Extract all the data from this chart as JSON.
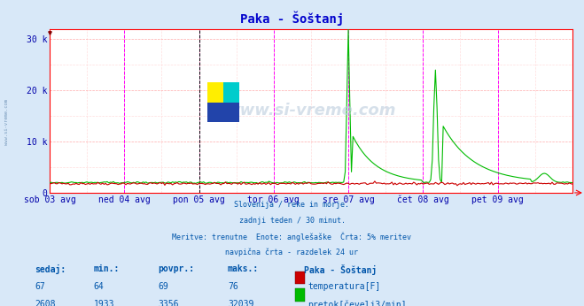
{
  "title": "Paka - Šoštanj",
  "bg_color": "#d8e8f8",
  "plot_bg_color": "#ffffff",
  "grid_color_major": "#ffaaaa",
  "grid_color_minor": "#ffdddd",
  "vline_color_magenta": "#ff00ff",
  "vline_color_black": "#000000",
  "xlabel_color": "#0000aa",
  "ylabel_color": "#0000aa",
  "title_color": "#0000cc",
  "text_color": "#0055aa",
  "x_start": 0,
  "x_end": 336,
  "ylim": [
    0,
    32000
  ],
  "yticks": [
    0,
    10000,
    20000,
    30000
  ],
  "ytick_labels": [
    "0",
    "10 k",
    "20 k",
    "30 k"
  ],
  "x_tick_positions": [
    0,
    48,
    96,
    144,
    192,
    240,
    288,
    336
  ],
  "x_tick_labels": [
    "sob 03 avg",
    "ned 04 avg",
    "pon 05 avg",
    "tor 06 avg",
    "sre 07 avg",
    "čet 08 avg",
    "pet 09 avg",
    ""
  ],
  "vlines_magenta": [
    0,
    48,
    96,
    144,
    192,
    240,
    288,
    336
  ],
  "vline_black": [
    96
  ],
  "temp_color": "#cc0000",
  "flow_color": "#00bb00",
  "watermark_text": "www.si-vreme.com",
  "subtitle_lines": [
    "Slovenija / reke in morje.",
    "zadnji teden / 30 minut.",
    "Meritve: trenutne  Enote: anglešaške  Črta: 5% meritev",
    "navpična črta - razdelek 24 ur"
  ],
  "legend_title": "Paka - Šoštanj",
  "legend_items": [
    "temperatura[F]",
    "pretok[čevelj3/min]"
  ],
  "legend_colors": [
    "#cc0000",
    "#00bb00"
  ],
  "stats_headers": [
    "sedaj:",
    "min.:",
    "povpr.:",
    "maks.:"
  ],
  "stats_temp": [
    67,
    64,
    69,
    76
  ],
  "stats_flow": [
    2608,
    1933,
    3356,
    32039
  ]
}
